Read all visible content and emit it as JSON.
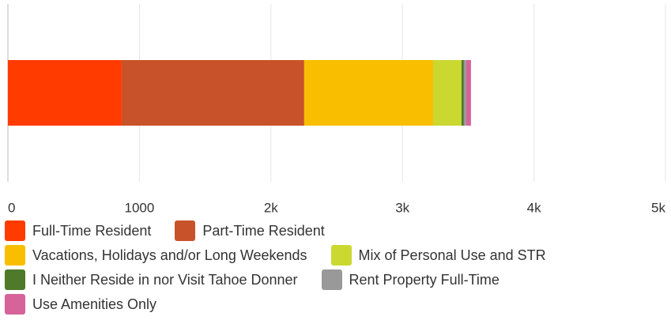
{
  "chart_data": {
    "type": "stacked-bar-horizontal",
    "series": [
      {
        "name": "Full-Time Resident",
        "color": "#ff3b00",
        "values": [
          865
        ]
      },
      {
        "name": "Part-Time Resident",
        "color": "#c8532a",
        "values": [
          1388
        ]
      },
      {
        "name": "Vacations, Holidays and/or Long Weekends",
        "color": "#f9be00",
        "values": [
          980
        ]
      },
      {
        "name": "Mix of Personal Use and STR",
        "color": "#cad82f",
        "values": [
          216
        ]
      },
      {
        "name": "I Neither Reside in nor Visit Tahoe Donner",
        "color": "#4e7a2a",
        "values": [
          18
        ]
      },
      {
        "name": "Rent Property Full-Time",
        "color": "#999999",
        "values": [
          18
        ]
      },
      {
        "name": "Use Amenities Only",
        "color": "#d6639a",
        "values": [
          36
        ]
      }
    ],
    "xlim": [
      0,
      5000
    ],
    "xticks": [
      0,
      1000,
      {
        "value": 2000,
        "label": "2k"
      },
      {
        "value": 3000,
        "label": "3k"
      },
      {
        "value": 4000,
        "label": "4k"
      },
      {
        "value": 5000,
        "label": "5k"
      }
    ],
    "grid": true
  }
}
